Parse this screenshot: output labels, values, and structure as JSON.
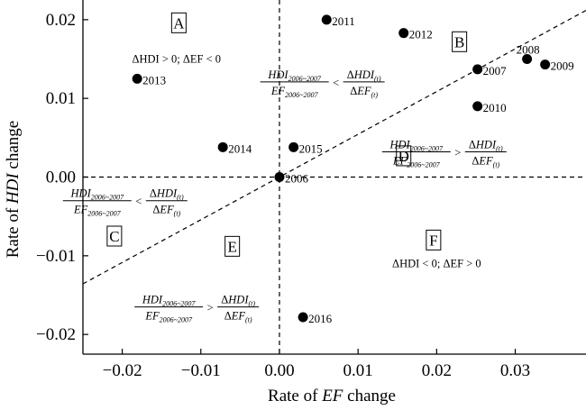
{
  "chart_data": {
    "type": "scatter",
    "xlabel": {
      "pre": "Rate of ",
      "ital": "EF",
      "post": " change"
    },
    "ylabel": {
      "pre": "Rate of ",
      "ital": "HDI",
      "post": " change"
    },
    "xlim": [
      -0.025,
      0.039
    ],
    "ylim": [
      -0.0225,
      0.0225
    ],
    "x_ticks": [
      -0.02,
      -0.01,
      0.0,
      0.01,
      0.02,
      0.03
    ],
    "x_tick_labels": [
      "−0.02",
      "−0.01",
      "0.00",
      "0.01",
      "0.02",
      "0.03"
    ],
    "y_ticks": [
      0.02,
      0.01,
      0.0,
      -0.01,
      -0.02
    ],
    "y_tick_labels": [
      "0.02",
      "0.01",
      "0.00",
      "−0.01",
      "−0.02"
    ],
    "grid": false,
    "points": [
      {
        "label": "2006",
        "x": 0.0,
        "y": 0.0
      },
      {
        "label": "2007",
        "x": 0.0252,
        "y": 0.0137
      },
      {
        "label": "2008",
        "x": 0.0315,
        "y": 0.015
      },
      {
        "label": "2009",
        "x": 0.0338,
        "y": 0.0143
      },
      {
        "label": "2010",
        "x": 0.0252,
        "y": 0.009
      },
      {
        "label": "2011",
        "x": 0.006,
        "y": 0.02
      },
      {
        "label": "2012",
        "x": 0.0158,
        "y": 0.0183
      },
      {
        "label": "2013",
        "x": -0.0181,
        "y": 0.0125
      },
      {
        "label": "2014",
        "x": -0.0072,
        "y": 0.0038
      },
      {
        "label": "2015",
        "x": 0.0018,
        "y": 0.0038
      },
      {
        "label": "2016",
        "x": 0.003,
        "y": -0.0178
      }
    ],
    "reference_line": {
      "x0": -0.025,
      "y0": -0.01357,
      "x1": 0.039,
      "y1": 0.02118
    },
    "regions": [
      {
        "letter": "A",
        "x": -0.0128,
        "y": 0.0196
      },
      {
        "letter": "B",
        "x": 0.0229,
        "y": 0.0172
      },
      {
        "letter": "C",
        "x": -0.021,
        "y": -0.0075
      },
      {
        "letter": "D",
        "x": 0.0158,
        "y": 0.0027
      },
      {
        "letter": "E",
        "x": -0.006,
        "y": -0.0088
      },
      {
        "letter": "F",
        "x": 0.0196,
        "y": -0.008
      }
    ],
    "conditions": [
      {
        "text": "ΔHDI > 0; ΔEF < 0",
        "x": -0.0131,
        "y": 0.015
      },
      {
        "text": "ΔHDI < 0; ΔEF > 0",
        "x": 0.02,
        "y": -0.011
      }
    ],
    "ratio_annotations": [
      {
        "op": "<",
        "x": 0.0065,
        "y": 0.0121
      },
      {
        "op": ">",
        "x": 0.022,
        "y": 0.0032
      },
      {
        "op": "<",
        "x": -0.0186,
        "y": -0.003
      },
      {
        "op": ">",
        "x": -0.0095,
        "y": -0.0165
      }
    ],
    "ratio_text": {
      "hdi": "HDI",
      "ef": "EF",
      "period": "2006~2007",
      "delta": "Δ",
      "t": "(t)"
    }
  }
}
